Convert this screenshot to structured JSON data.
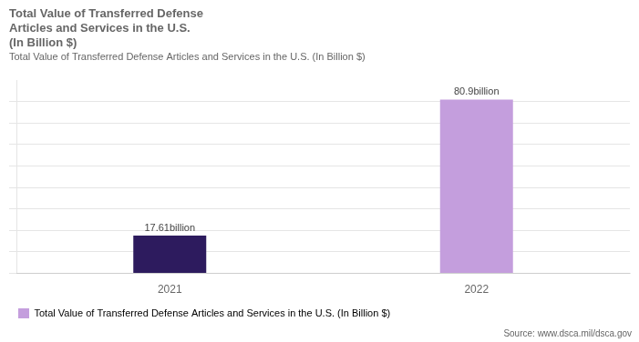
{
  "chart_data": {
    "type": "bar",
    "title": [
      "Total Value of Transferred Defense",
      "Articles and Services in the U.S.",
      "(In Billion $)"
    ],
    "subtitle": "Total Value of Transferred Defense Articles and Services in the U.S. (In Billion $)",
    "annotations": [
      "Source: www.dsca.mil/dsca.gov"
    ],
    "categories": [
      "2021",
      "2022"
    ],
    "series": [
      {
        "name": "Total Value of Transferred Defense Articles and Services in the U.S. (In Billion $)",
        "values": [
          17.61,
          80.9
        ],
        "value_labels": [
          "17.61billion",
          "80.9billion"
        ],
        "colors": [
          "#2d1b5e",
          "#c49edd"
        ]
      }
    ],
    "ylim": [
      0,
      90
    ],
    "yticks": [
      0,
      10,
      20,
      30,
      40,
      50,
      60,
      70,
      80
    ],
    "grid": true,
    "legend": "bottom",
    "data_labels": true,
    "tick_labels": "x"
  }
}
